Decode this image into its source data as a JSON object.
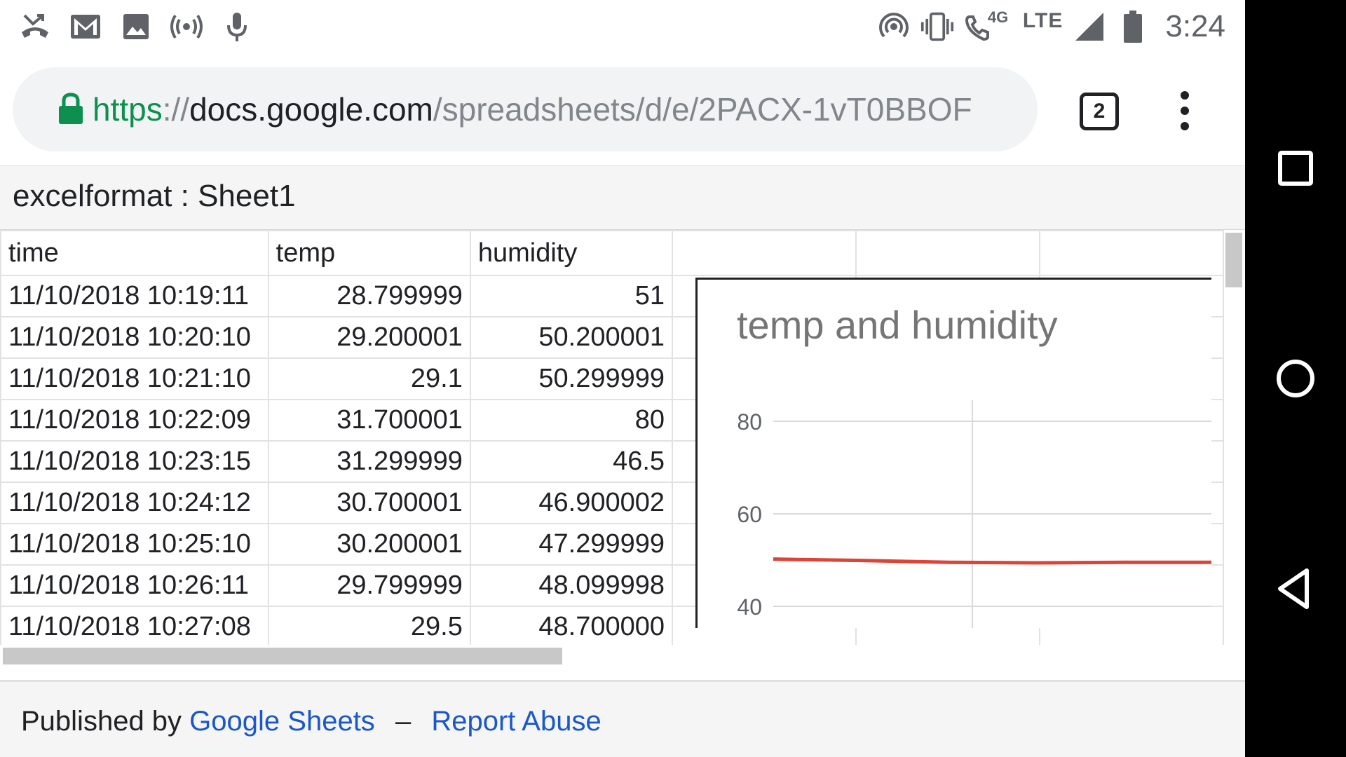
{
  "status_bar": {
    "left_icons": [
      "missed-call-icon",
      "gmail-icon",
      "image-icon",
      "broadcast-icon",
      "microphone-icon"
    ],
    "right_icons": [
      "hotspot-icon",
      "vibrate-icon",
      "wifi-call-icon",
      "signal-icon",
      "battery-icon"
    ],
    "call_badge": "4G",
    "network": "LTE",
    "time": "3:24"
  },
  "browser": {
    "url": {
      "scheme": "https",
      "sep": "://",
      "host": "docs.google.com",
      "path": "/spreadsheets/d/e/2PACX-1vT0BBOF"
    },
    "tab_count": "2"
  },
  "sheet": {
    "title": "excelformat : Sheet1",
    "headers": [
      "time",
      "temp",
      "humidity",
      "",
      "",
      ""
    ],
    "rows": [
      [
        "11/10/2018 10:19:11",
        "28.799999",
        "51"
      ],
      [
        "11/10/2018 10:20:10",
        "29.200001",
        "50.200001"
      ],
      [
        "11/10/2018 10:21:10",
        "29.1",
        "50.299999"
      ],
      [
        "11/10/2018 10:22:09",
        "31.700001",
        "80"
      ],
      [
        "11/10/2018 10:23:15",
        "31.299999",
        "46.5"
      ],
      [
        "11/10/2018 10:24:12",
        "30.700001",
        "46.900002"
      ],
      [
        "11/10/2018 10:25:10",
        "30.200001",
        "47.299999"
      ],
      [
        "11/10/2018 10:26:11",
        "29.799999",
        "48.099998"
      ],
      [
        "11/10/2018 10:27:08",
        "29.5",
        "48.700000"
      ]
    ]
  },
  "chart_data": {
    "type": "line",
    "title": "temp and humidity",
    "yticks": [
      "80",
      "60",
      "40"
    ],
    "ylim": [
      40,
      80
    ],
    "grid": true,
    "series": [
      {
        "values": [
          50.2,
          49.9,
          49.5,
          49.4,
          49.5,
          49.5
        ],
        "color": "#db4437"
      }
    ]
  },
  "footer": {
    "published_by": "Published by",
    "google_sheets": "Google Sheets",
    "dash": "–",
    "report_abuse": "Report Abuse"
  }
}
